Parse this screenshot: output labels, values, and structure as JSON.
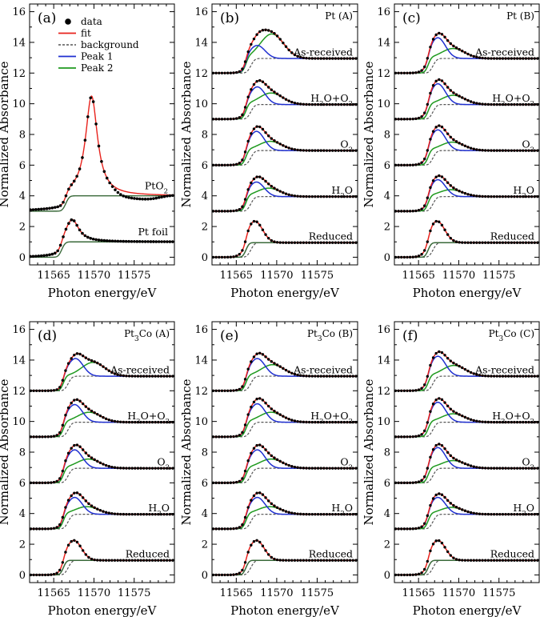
{
  "chart_data": {
    "type": "line",
    "xlabel": "Photon energy/eV",
    "ylabel": "Normalized Absorbance",
    "xlim": [
      11562,
      11580
    ],
    "ylim": [
      -0.5,
      16.5
    ],
    "xticks": [
      11565,
      11570,
      11575
    ],
    "yticks": [
      0,
      2,
      4,
      6,
      8,
      10,
      12,
      14,
      16
    ],
    "colors": {
      "data": "#000000",
      "fit": "#e8221c",
      "background": "#555555",
      "peak1": "#1f2fd0",
      "peak2": "#1f9a1f"
    },
    "legend": [
      {
        "key": "data",
        "label": "data",
        "style": "dot"
      },
      {
        "key": "fit",
        "label": "fit",
        "style": "line"
      },
      {
        "key": "background",
        "label": "background",
        "style": "dashed"
      },
      {
        "key": "peak1",
        "label": "Peak 1",
        "style": "line"
      },
      {
        "key": "peak2",
        "label": "Peak 2",
        "style": "line"
      }
    ],
    "panels": [
      {
        "label": "(a)",
        "sample": "",
        "sample_base": "",
        "sample_sub": "",
        "sample_rest": "",
        "legend": true,
        "ref_spectra": [
          {
            "name": "PtO2",
            "name_base": "PtO",
            "name_sub": "2",
            "offset": 3,
            "peak_pos": 11569.7,
            "peak_height": 6.5,
            "peak_width": 1.45,
            "step_center": 11566.5,
            "step_height": 1.0,
            "tail_drop": 0.35
          },
          {
            "name": "Pt foil",
            "name_base": "Pt foil",
            "name_sub": "",
            "offset": 0,
            "peak_pos": 11567.3,
            "peak_height": 1.45,
            "peak_width": 1.6,
            "step_center": 11566.0,
            "step_height": 1.0,
            "tail_drop": 0.0
          }
        ]
      },
      {
        "label": "(b)",
        "sample": "Pt (A)",
        "sample_base": "Pt (A)",
        "sample_sub": "",
        "sample_rest": "",
        "legend": false,
        "spectra": [
          {
            "condition": "As-received",
            "offset": 12,
            "p1_pos": 11567.6,
            "p1_amp": 0.85,
            "p2_pos": 11569.4,
            "p2_amp": 1.6
          },
          {
            "condition": "H2O+O2",
            "offset": 9,
            "p1_pos": 11567.6,
            "p1_amp": 1.15,
            "p2_pos": 11569.3,
            "p2_amp": 0.75
          },
          {
            "condition": "O2",
            "offset": 6,
            "p1_pos": 11567.5,
            "p1_amp": 1.25,
            "p2_pos": 11569.2,
            "p2_amp": 0.6
          },
          {
            "condition": "H2O",
            "offset": 3,
            "p1_pos": 11567.5,
            "p1_amp": 0.95,
            "p2_pos": 11569.0,
            "p2_amp": 0.55
          },
          {
            "condition": "Reduced",
            "offset": 0,
            "p1_pos": 11567.3,
            "p1_amp": 1.4,
            "p2_pos": 11569.0,
            "p2_amp": 0.0
          }
        ]
      },
      {
        "label": "(c)",
        "sample": "Pt (B)",
        "sample_base": "Pt (B)",
        "sample_sub": "",
        "sample_rest": "",
        "legend": false,
        "spectra": [
          {
            "condition": "As-received",
            "offset": 12,
            "p1_pos": 11567.4,
            "p1_amp": 1.35,
            "p2_pos": 11569.3,
            "p2_amp": 0.65
          },
          {
            "condition": "H2O+O2",
            "offset": 9,
            "p1_pos": 11567.4,
            "p1_amp": 1.35,
            "p2_pos": 11569.3,
            "p2_amp": 0.6
          },
          {
            "condition": "O2",
            "offset": 6,
            "p1_pos": 11567.4,
            "p1_amp": 1.35,
            "p2_pos": 11569.2,
            "p2_amp": 0.55
          },
          {
            "condition": "H2O",
            "offset": 3,
            "p1_pos": 11567.4,
            "p1_amp": 1.1,
            "p2_pos": 11569.0,
            "p2_amp": 0.45
          },
          {
            "condition": "Reduced",
            "offset": 0,
            "p1_pos": 11567.3,
            "p1_amp": 1.4,
            "p2_pos": 11569.0,
            "p2_amp": 0.0
          }
        ]
      },
      {
        "label": "(d)",
        "sample": "Pt3Co (A)",
        "sample_base": "Pt",
        "sample_sub": "3",
        "sample_rest": "Co (A)",
        "legend": false,
        "spectra": [
          {
            "condition": "As-received",
            "offset": 12,
            "p1_pos": 11567.7,
            "p1_amp": 1.15,
            "p2_pos": 11569.9,
            "p2_amp": 0.9
          },
          {
            "condition": "H2O+O2",
            "offset": 9,
            "p1_pos": 11567.6,
            "p1_amp": 1.15,
            "p2_pos": 11569.4,
            "p2_amp": 0.65
          },
          {
            "condition": "O2",
            "offset": 6,
            "p1_pos": 11567.6,
            "p1_amp": 1.2,
            "p2_pos": 11569.3,
            "p2_amp": 0.6
          },
          {
            "condition": "H2O",
            "offset": 3,
            "p1_pos": 11567.6,
            "p1_amp": 1.1,
            "p2_pos": 11569.1,
            "p2_amp": 0.5
          },
          {
            "condition": "Reduced",
            "offset": 0,
            "p1_pos": 11567.5,
            "p1_amp": 1.3,
            "p2_pos": 11569.0,
            "p2_amp": 0.0
          }
        ]
      },
      {
        "label": "(e)",
        "sample": "Pt3Co (B)",
        "sample_base": "Pt",
        "sample_sub": "3",
        "sample_rest": "Co (B)",
        "legend": false,
        "spectra": [
          {
            "condition": "As-received",
            "offset": 12,
            "p1_pos": 11567.6,
            "p1_amp": 1.15,
            "p2_pos": 11569.5,
            "p2_amp": 0.75
          },
          {
            "condition": "H2O+O2",
            "offset": 9,
            "p1_pos": 11567.6,
            "p1_amp": 1.2,
            "p2_pos": 11569.3,
            "p2_amp": 0.65
          },
          {
            "condition": "O2",
            "offset": 6,
            "p1_pos": 11567.6,
            "p1_amp": 1.2,
            "p2_pos": 11569.3,
            "p2_amp": 0.6
          },
          {
            "condition": "H2O",
            "offset": 3,
            "p1_pos": 11567.6,
            "p1_amp": 1.1,
            "p2_pos": 11569.1,
            "p2_amp": 0.5
          },
          {
            "condition": "Reduced",
            "offset": 0,
            "p1_pos": 11567.5,
            "p1_amp": 1.3,
            "p2_pos": 11569.0,
            "p2_amp": 0.0
          }
        ]
      },
      {
        "label": "(f)",
        "sample": "Pt3Co (C)",
        "sample_base": "Pt",
        "sample_sub": "3",
        "sample_rest": "Co (C)",
        "legend": false,
        "spectra": [
          {
            "condition": "As-received",
            "offset": 12,
            "p1_pos": 11567.4,
            "p1_amp": 1.3,
            "p2_pos": 11569.4,
            "p2_amp": 0.7
          },
          {
            "condition": "H2O+O2",
            "offset": 9,
            "p1_pos": 11567.4,
            "p1_amp": 1.3,
            "p2_pos": 11569.3,
            "p2_amp": 0.55
          },
          {
            "condition": "O2",
            "offset": 6,
            "p1_pos": 11567.4,
            "p1_amp": 1.35,
            "p2_pos": 11569.3,
            "p2_amp": 0.5
          },
          {
            "condition": "H2O",
            "offset": 3,
            "p1_pos": 11567.4,
            "p1_amp": 1.1,
            "p2_pos": 11569.1,
            "p2_amp": 0.45
          },
          {
            "condition": "Reduced",
            "offset": 0,
            "p1_pos": 11567.4,
            "p1_amp": 1.3,
            "p2_pos": 11569.0,
            "p2_amp": 0.0
          }
        ]
      }
    ]
  }
}
